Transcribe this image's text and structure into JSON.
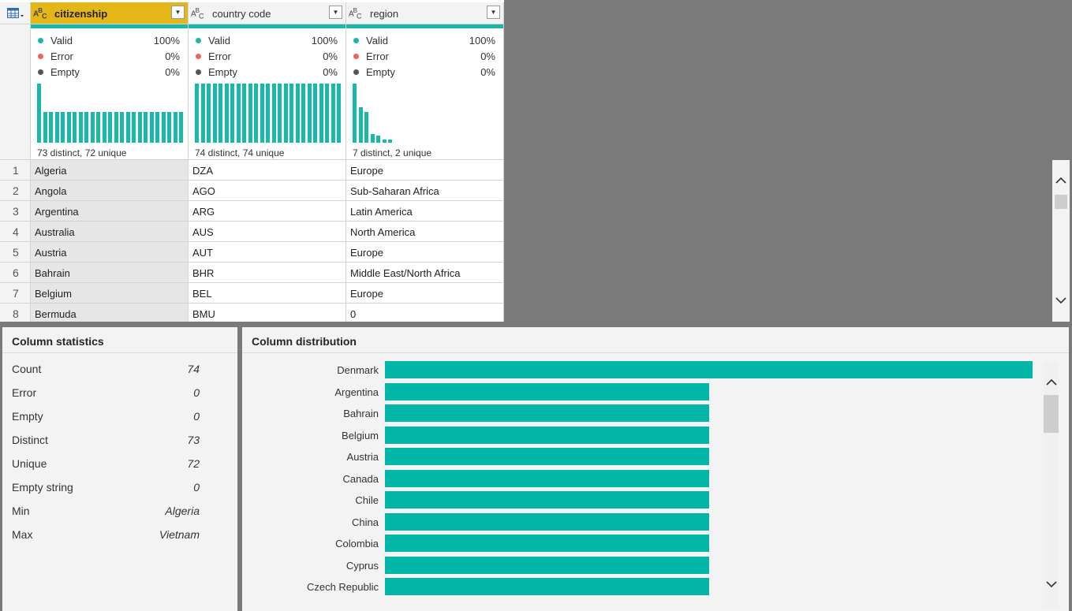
{
  "grid": {
    "columns": [
      {
        "name": "citizenship",
        "type_icon": "text-type-icon",
        "selected": true,
        "valid_label": "Valid",
        "valid_pct": "100%",
        "error_label": "Error",
        "error_pct": "0%",
        "empty_label": "Empty",
        "empty_pct": "0%",
        "distinct_text": "73 distinct, 72 unique",
        "histogram": [
          1.0,
          0.52,
          0.52,
          0.52,
          0.52,
          0.52,
          0.52,
          0.52,
          0.52,
          0.52,
          0.52,
          0.52,
          0.52,
          0.52,
          0.52,
          0.52,
          0.52,
          0.52,
          0.52,
          0.52,
          0.52,
          0.52,
          0.52,
          0.52,
          0.52
        ]
      },
      {
        "name": "country code",
        "type_icon": "text-type-icon",
        "selected": false,
        "valid_label": "Valid",
        "valid_pct": "100%",
        "error_label": "Error",
        "error_pct": "0%",
        "empty_label": "Empty",
        "empty_pct": "0%",
        "distinct_text": "74 distinct, 74 unique",
        "histogram": [
          1,
          1,
          1,
          1,
          1,
          1,
          1,
          1,
          1,
          1,
          1,
          1,
          1,
          1,
          1,
          1,
          1,
          1,
          1,
          1,
          1,
          1,
          1,
          1,
          1
        ]
      },
      {
        "name": "region",
        "type_icon": "text-type-icon",
        "selected": false,
        "valid_label": "Valid",
        "valid_pct": "100%",
        "error_label": "Error",
        "error_pct": "0%",
        "empty_label": "Empty",
        "empty_pct": "0%",
        "distinct_text": "7 distinct, 2 unique",
        "histogram": [
          1.0,
          0.6,
          0.52,
          0.14,
          0.12,
          0.05,
          0.05
        ]
      }
    ],
    "rows": [
      {
        "num": "1",
        "citizenship": "Algeria",
        "code": "DZA",
        "region": "Europe"
      },
      {
        "num": "2",
        "citizenship": "Angola",
        "code": "AGO",
        "region": "Sub-Saharan Africa"
      },
      {
        "num": "3",
        "citizenship": "Argentina",
        "code": "ARG",
        "region": "Latin America"
      },
      {
        "num": "4",
        "citizenship": "Australia",
        "code": "AUS",
        "region": "North America"
      },
      {
        "num": "5",
        "citizenship": "Austria",
        "code": "AUT",
        "region": "Europe"
      },
      {
        "num": "6",
        "citizenship": "Bahrain",
        "code": "BHR",
        "region": "Middle East/North Africa"
      },
      {
        "num": "7",
        "citizenship": "Belgium",
        "code": "BEL",
        "region": "Europe"
      },
      {
        "num": "8",
        "citizenship": "Bermuda",
        "code": "BMU",
        "region": "0"
      }
    ]
  },
  "stats": {
    "title": "Column statistics",
    "items": [
      {
        "label": "Count",
        "value": "74"
      },
      {
        "label": "Error",
        "value": "0"
      },
      {
        "label": "Empty",
        "value": "0"
      },
      {
        "label": "Distinct",
        "value": "73"
      },
      {
        "label": "Unique",
        "value": "72"
      },
      {
        "label": "Empty string",
        "value": "0"
      },
      {
        "label": "Min",
        "value": "Algeria"
      },
      {
        "label": "Max",
        "value": "Vietnam"
      }
    ]
  },
  "distribution": {
    "title": "Column distribution",
    "bar_color": "#02b6a8"
  },
  "colors": {
    "accent": "#19b8a8",
    "selected_header": "#e5b618",
    "valid_dot": "#19b8a8",
    "error_dot": "#f0625c",
    "empty_dot": "#555555"
  },
  "chart_data": {
    "type": "bar",
    "orientation": "horizontal",
    "title": "Column distribution",
    "categories": [
      "Denmark",
      "Argentina",
      "Bahrain",
      "Belgium",
      "Austria",
      "Canada",
      "Chile",
      "China",
      "Colombia",
      "Cyprus",
      "Czech Republic"
    ],
    "values": [
      2,
      1,
      1,
      1,
      1,
      1,
      1,
      1,
      1,
      1,
      1
    ],
    "xlim": [
      0,
      2
    ]
  }
}
